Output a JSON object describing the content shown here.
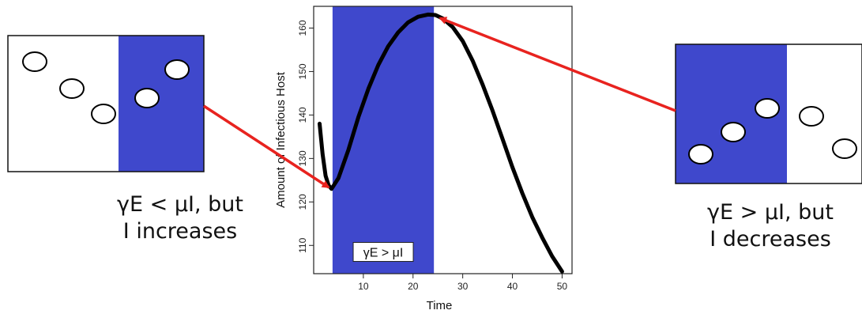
{
  "chart_data": {
    "type": "line",
    "title": "",
    "xlabel": "Time",
    "ylabel": "Amount of Infectious Host",
    "xlim": [
      0,
      52
    ],
    "ylim": [
      103.5,
      165
    ],
    "xticks": [
      10,
      20,
      30,
      40,
      50
    ],
    "yticks": [
      110,
      120,
      130,
      140,
      150,
      160
    ],
    "grid": false,
    "shaded_region": {
      "x": [
        3.8,
        24.2
      ],
      "color": "#3f48cc",
      "label": "γE > μI"
    },
    "series": [
      {
        "color": "#000000",
        "points": [
          [
            1.2,
            138.0
          ],
          [
            1.8,
            131.0
          ],
          [
            2.4,
            126.0
          ],
          [
            3.0,
            123.8
          ],
          [
            3.6,
            123.0
          ],
          [
            5.0,
            125.5
          ],
          [
            7.0,
            132.0
          ],
          [
            9.0,
            139.5
          ],
          [
            11.0,
            146.0
          ],
          [
            13.0,
            151.5
          ],
          [
            15.0,
            155.8
          ],
          [
            17.0,
            159.0
          ],
          [
            19.0,
            161.3
          ],
          [
            21.0,
            162.6
          ],
          [
            23.0,
            163.1
          ],
          [
            24.5,
            163.0
          ],
          [
            26.0,
            162.2
          ],
          [
            28.0,
            160.2
          ],
          [
            30.0,
            157.0
          ],
          [
            32.0,
            152.5
          ],
          [
            34.0,
            147.0
          ],
          [
            36.0,
            141.0
          ],
          [
            38.0,
            134.5
          ],
          [
            40.0,
            128.0
          ],
          [
            42.0,
            122.0
          ],
          [
            44.0,
            116.5
          ],
          [
            46.0,
            111.8
          ],
          [
            48.0,
            107.5
          ],
          [
            50.0,
            104.0
          ]
        ]
      }
    ]
  },
  "callouts": {
    "left": {
      "caption": [
        "γE < μI, but",
        "I increases"
      ],
      "shade_color": "#3f48cc",
      "points_in_white": 3,
      "points_in_blue": 2,
      "arrow_target": [
        3.8,
        123.0
      ]
    },
    "right": {
      "caption": [
        "γE > μI, but",
        "I decreases"
      ],
      "shade_color": "#3f48cc",
      "points_in_blue": 3,
      "points_in_white": 2,
      "arrow_target": [
        24.5,
        163.0
      ]
    },
    "arrow_color": "#e8231f"
  }
}
